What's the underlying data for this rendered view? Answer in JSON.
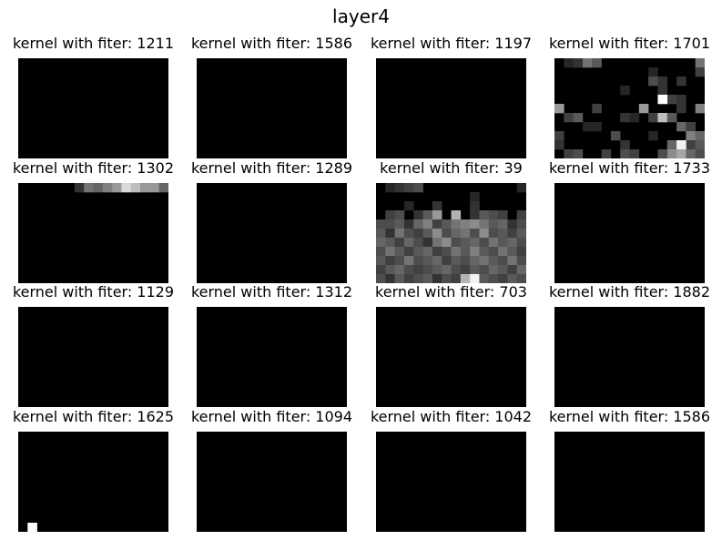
{
  "figure": {
    "title": "layer4"
  },
  "chart_data": {
    "type": "heatmap",
    "colormap": "gray",
    "rows": 4,
    "cols": 4,
    "grid_shape": [
      11,
      16
    ],
    "panels": [
      {
        "title": "kernel with fiter: 1211",
        "filter": 1211,
        "cells": []
      },
      {
        "title": "kernel with fiter: 1586",
        "filter": 1586,
        "cells": []
      },
      {
        "title": "kernel with fiter: 1197",
        "filter": 1197,
        "cells": []
      },
      {
        "title": "kernel with fiter: 1701",
        "filter": 1701,
        "cells": [
          [
            0,
            1,
            0.15
          ],
          [
            0,
            2,
            0.2
          ],
          [
            0,
            3,
            0.45
          ],
          [
            0,
            4,
            0.35
          ],
          [
            0,
            15,
            0.45
          ],
          [
            1,
            10,
            0.15
          ],
          [
            1,
            15,
            0.25
          ],
          [
            2,
            10,
            0.3
          ],
          [
            2,
            11,
            0.2
          ],
          [
            2,
            13,
            0.2
          ],
          [
            3,
            11,
            0.2
          ],
          [
            3,
            7,
            0.15
          ],
          [
            4,
            12,
            0.25
          ],
          [
            4,
            11,
            1.0
          ],
          [
            4,
            13,
            0.2
          ],
          [
            5,
            0,
            0.6
          ],
          [
            5,
            4,
            0.25
          ],
          [
            5,
            9,
            0.6
          ],
          [
            5,
            13,
            0.2
          ],
          [
            5,
            15,
            0.5
          ],
          [
            6,
            1,
            0.25
          ],
          [
            6,
            2,
            0.35
          ],
          [
            6,
            7,
            0.2
          ],
          [
            6,
            8,
            0.15
          ],
          [
            6,
            10,
            0.25
          ],
          [
            6,
            11,
            0.75
          ],
          [
            6,
            12,
            0.35
          ],
          [
            7,
            13,
            0.4
          ],
          [
            7,
            4,
            0.15
          ],
          [
            7,
            14,
            0.25
          ],
          [
            7,
            3,
            0.15
          ],
          [
            8,
            0,
            0.25
          ],
          [
            8,
            10,
            0.15
          ],
          [
            8,
            14,
            0.5
          ],
          [
            8,
            15,
            0.4
          ],
          [
            8,
            6,
            0.3
          ],
          [
            9,
            0,
            0.2
          ],
          [
            9,
            7,
            0.2
          ],
          [
            9,
            12,
            0.4
          ],
          [
            9,
            14,
            0.25
          ],
          [
            9,
            15,
            0.35
          ],
          [
            9,
            13,
            0.95
          ],
          [
            10,
            1,
            0.25
          ],
          [
            10,
            2,
            0.3
          ],
          [
            10,
            5,
            0.25
          ],
          [
            10,
            7,
            0.3
          ],
          [
            10,
            12,
            0.55
          ],
          [
            10,
            13,
            0.65
          ],
          [
            10,
            14,
            0.4
          ],
          [
            10,
            15,
            0.3
          ],
          [
            10,
            8,
            0.25
          ],
          [
            10,
            11,
            0.3
          ]
        ]
      },
      {
        "title": "kernel with fiter: 1302",
        "filter": 1302,
        "cells": [
          [
            0,
            6,
            0.2
          ],
          [
            0,
            7,
            0.45
          ],
          [
            0,
            8,
            0.4
          ],
          [
            0,
            9,
            0.5
          ],
          [
            0,
            10,
            0.6
          ],
          [
            0,
            11,
            0.85
          ],
          [
            0,
            12,
            0.75
          ],
          [
            0,
            13,
            0.6
          ],
          [
            0,
            14,
            0.6
          ],
          [
            0,
            15,
            0.4
          ]
        ]
      },
      {
        "title": "kernel with fiter: 1289",
        "filter": 1289,
        "cells": []
      },
      {
        "title": "kernel with fiter: 39",
        "filter": 39,
        "cells": [
          [
            0,
            1,
            0.15
          ],
          [
            0,
            2,
            0.2
          ],
          [
            0,
            3,
            0.25
          ],
          [
            0,
            4,
            0.3
          ],
          [
            0,
            15,
            0.15
          ],
          [
            1,
            10,
            0.15
          ],
          [
            2,
            3,
            0.15
          ],
          [
            2,
            6,
            0.2
          ],
          [
            2,
            10,
            0.2
          ],
          [
            3,
            1,
            0.25
          ],
          [
            3,
            2,
            0.3
          ],
          [
            3,
            4,
            0.2
          ],
          [
            3,
            5,
            0.35
          ],
          [
            3,
            6,
            0.6
          ],
          [
            3,
            8,
            0.7
          ],
          [
            3,
            10,
            0.2
          ],
          [
            3,
            11,
            0.35
          ],
          [
            3,
            12,
            0.3
          ],
          [
            3,
            13,
            0.25
          ],
          [
            3,
            15,
            0.25
          ],
          [
            4,
            0,
            0.3
          ],
          [
            4,
            1,
            0.3
          ],
          [
            4,
            2,
            0.35
          ],
          [
            4,
            3,
            0.2
          ],
          [
            4,
            4,
            0.4
          ],
          [
            4,
            5,
            0.5
          ],
          [
            4,
            6,
            0.25
          ],
          [
            4,
            7,
            0.35
          ],
          [
            4,
            8,
            0.45
          ],
          [
            4,
            9,
            0.5
          ],
          [
            4,
            10,
            0.55
          ],
          [
            4,
            11,
            0.45
          ],
          [
            4,
            12,
            0.35
          ],
          [
            4,
            13,
            0.4
          ],
          [
            4,
            14,
            0.2
          ],
          [
            4,
            15,
            0.3
          ],
          [
            5,
            0,
            0.35
          ],
          [
            5,
            1,
            0.2
          ],
          [
            5,
            2,
            0.45
          ],
          [
            5,
            3,
            0.3
          ],
          [
            5,
            4,
            0.25
          ],
          [
            5,
            5,
            0.35
          ],
          [
            5,
            6,
            0.55
          ],
          [
            5,
            7,
            0.3
          ],
          [
            5,
            8,
            0.4
          ],
          [
            5,
            9,
            0.45
          ],
          [
            5,
            10,
            0.3
          ],
          [
            5,
            11,
            0.55
          ],
          [
            5,
            12,
            0.3
          ],
          [
            5,
            13,
            0.35
          ],
          [
            5,
            14,
            0.25
          ],
          [
            5,
            15,
            0.35
          ],
          [
            6,
            0,
            0.4
          ],
          [
            6,
            1,
            0.35
          ],
          [
            6,
            2,
            0.25
          ],
          [
            6,
            3,
            0.4
          ],
          [
            6,
            4,
            0.3
          ],
          [
            6,
            5,
            0.2
          ],
          [
            6,
            6,
            0.45
          ],
          [
            6,
            7,
            0.55
          ],
          [
            6,
            8,
            0.3
          ],
          [
            6,
            9,
            0.35
          ],
          [
            6,
            10,
            0.4
          ],
          [
            6,
            11,
            0.3
          ],
          [
            6,
            12,
            0.45
          ],
          [
            6,
            13,
            0.35
          ],
          [
            6,
            14,
            0.4
          ],
          [
            6,
            15,
            0.3
          ],
          [
            7,
            0,
            0.3
          ],
          [
            7,
            1,
            0.45
          ],
          [
            7,
            2,
            0.35
          ],
          [
            7,
            3,
            0.25
          ],
          [
            7,
            4,
            0.35
          ],
          [
            7,
            5,
            0.4
          ],
          [
            7,
            6,
            0.25
          ],
          [
            7,
            7,
            0.3
          ],
          [
            7,
            8,
            0.45
          ],
          [
            7,
            9,
            0.35
          ],
          [
            7,
            10,
            0.5
          ],
          [
            7,
            11,
            0.35
          ],
          [
            7,
            12,
            0.3
          ],
          [
            7,
            13,
            0.45
          ],
          [
            7,
            14,
            0.35
          ],
          [
            7,
            15,
            0.25
          ],
          [
            8,
            0,
            0.35
          ],
          [
            8,
            1,
            0.25
          ],
          [
            8,
            2,
            0.3
          ],
          [
            8,
            3,
            0.45
          ],
          [
            8,
            4,
            0.3
          ],
          [
            8,
            5,
            0.35
          ],
          [
            8,
            6,
            0.4
          ],
          [
            8,
            7,
            0.25
          ],
          [
            8,
            8,
            0.35
          ],
          [
            8,
            9,
            0.3
          ],
          [
            8,
            10,
            0.4
          ],
          [
            8,
            11,
            0.45
          ],
          [
            8,
            12,
            0.35
          ],
          [
            8,
            13,
            0.3
          ],
          [
            8,
            14,
            0.45
          ],
          [
            8,
            15,
            0.3
          ],
          [
            9,
            0,
            0.25
          ],
          [
            9,
            1,
            0.35
          ],
          [
            9,
            2,
            0.4
          ],
          [
            9,
            3,
            0.3
          ],
          [
            9,
            4,
            0.25
          ],
          [
            9,
            5,
            0.3
          ],
          [
            9,
            6,
            0.35
          ],
          [
            9,
            7,
            0.4
          ],
          [
            9,
            8,
            0.3
          ],
          [
            9,
            9,
            0.25
          ],
          [
            9,
            10,
            0.35
          ],
          [
            9,
            11,
            0.3
          ],
          [
            9,
            12,
            0.4
          ],
          [
            9,
            13,
            0.35
          ],
          [
            9,
            14,
            0.25
          ],
          [
            9,
            15,
            0.4
          ],
          [
            10,
            0,
            0.3
          ],
          [
            10,
            1,
            0.2
          ],
          [
            10,
            2,
            0.35
          ],
          [
            10,
            3,
            0.25
          ],
          [
            10,
            4,
            0.3
          ],
          [
            10,
            5,
            0.35
          ],
          [
            10,
            6,
            0.2
          ],
          [
            10,
            7,
            0.3
          ],
          [
            10,
            8,
            0.25
          ],
          [
            10,
            9,
            0.7
          ],
          [
            10,
            10,
            0.95
          ],
          [
            10,
            11,
            0.35
          ],
          [
            10,
            12,
            0.3
          ],
          [
            10,
            13,
            0.25
          ],
          [
            10,
            14,
            0.35
          ],
          [
            10,
            15,
            0.3
          ]
        ]
      },
      {
        "title": "kernel with fiter: 1733",
        "filter": 1733,
        "cells": []
      },
      {
        "title": "kernel with fiter: 1129",
        "filter": 1129,
        "cells": []
      },
      {
        "title": "kernel with fiter: 1312",
        "filter": 1312,
        "cells": []
      },
      {
        "title": "kernel with fiter: 703",
        "filter": 703,
        "cells": []
      },
      {
        "title": "kernel with fiter: 1882",
        "filter": 1882,
        "cells": []
      },
      {
        "title": "kernel with fiter: 1625",
        "filter": 1625,
        "cells": [
          [
            10,
            1,
            1.0
          ]
        ]
      },
      {
        "title": "kernel with fiter: 1094",
        "filter": 1094,
        "cells": []
      },
      {
        "title": "kernel with fiter: 1042",
        "filter": 1042,
        "cells": []
      },
      {
        "title": "kernel with fiter: 1586",
        "filter": 1586,
        "cells": []
      }
    ]
  }
}
